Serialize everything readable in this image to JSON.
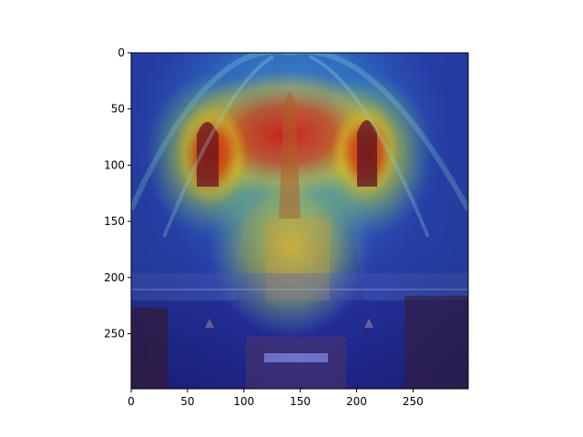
{
  "chart_data": {
    "type": "heatmap",
    "title": "",
    "xlabel": "",
    "ylabel": "",
    "image_description_colormap": "jet",
    "xlim": [
      0,
      299
    ],
    "ylim": [
      299,
      0
    ],
    "x_ticks": [
      0,
      50,
      100,
      150,
      200,
      250
    ],
    "y_ticks": [
      0,
      50,
      100,
      150,
      200,
      250
    ],
    "x_tick_labels": [
      "0",
      "50",
      "100",
      "150",
      "200",
      "250"
    ],
    "y_tick_labels": [
      "0",
      "50",
      "100",
      "150",
      "200",
      "250"
    ],
    "grid": false,
    "hotspots": [
      {
        "x": 140,
        "y": 75,
        "intensity": 1.0
      },
      {
        "x": 75,
        "y": 105,
        "intensity": 0.85
      },
      {
        "x": 210,
        "y": 105,
        "intensity": 0.8
      },
      {
        "x": 140,
        "y": 190,
        "intensity": 0.6
      },
      {
        "x": 140,
        "y": 20,
        "intensity": 0.45
      }
    ]
  }
}
